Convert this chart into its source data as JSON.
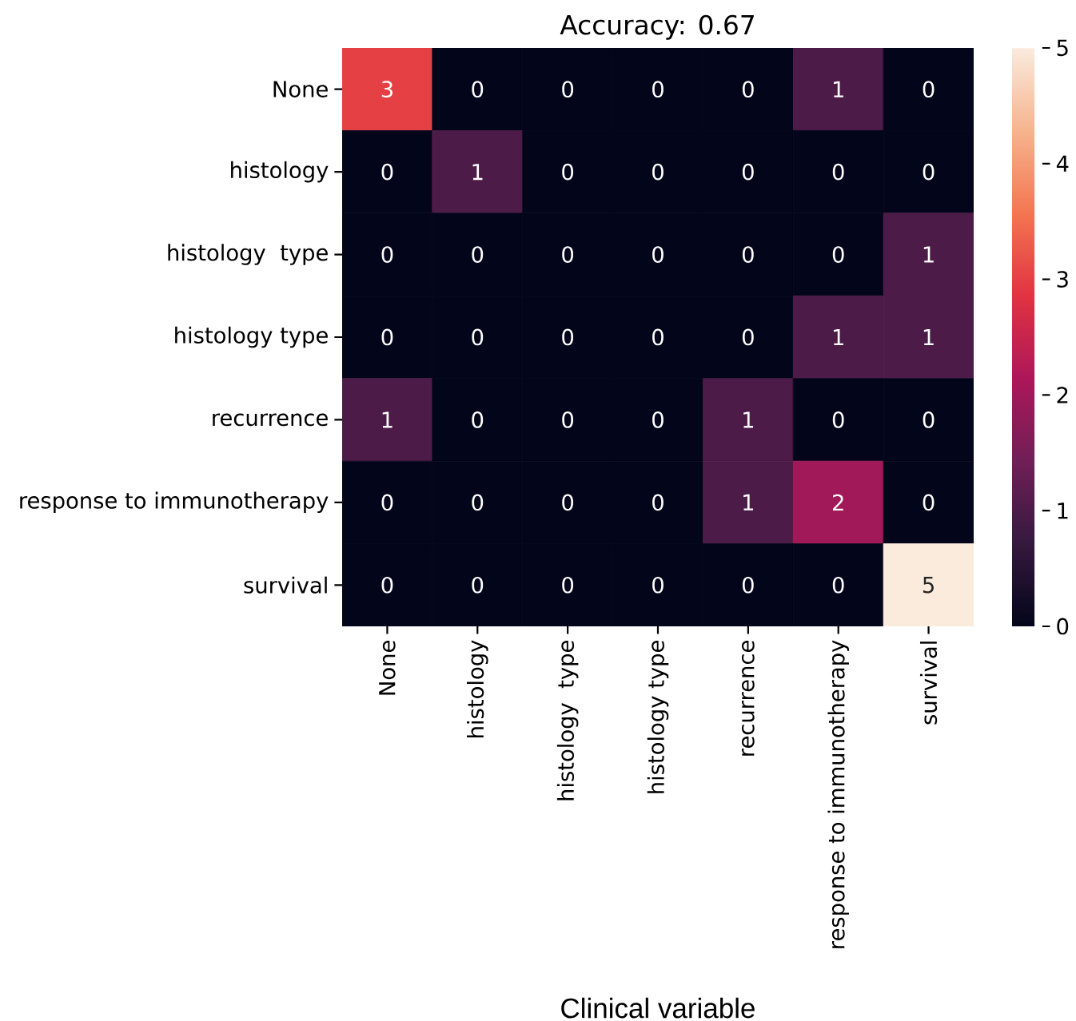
{
  "chart_data": {
    "type": "heatmap",
    "title": "Accuracy: 0.67",
    "xlabel": "Clinical variable",
    "categories": [
      "None",
      "histology",
      "histology  type",
      "histology type",
      "recurrence",
      "response to immunotherapy",
      "survival"
    ],
    "y_categories": [
      "None",
      "histology",
      "histology  type",
      "histology type",
      "recurrence",
      "response to immunotherapy",
      "survival"
    ],
    "cells": [
      [
        3,
        0,
        0,
        0,
        0,
        1,
        0
      ],
      [
        0,
        1,
        0,
        0,
        0,
        0,
        0
      ],
      [
        0,
        0,
        0,
        0,
        0,
        0,
        1
      ],
      [
        0,
        0,
        0,
        0,
        0,
        1,
        1
      ],
      [
        1,
        0,
        0,
        0,
        1,
        0,
        0
      ],
      [
        0,
        0,
        0,
        0,
        1,
        2,
        0
      ],
      [
        0,
        0,
        0,
        0,
        0,
        0,
        5
      ]
    ],
    "clim": [
      0,
      5
    ],
    "cticks": [
      0,
      1,
      2,
      3,
      4,
      5
    ],
    "data_labels": true
  }
}
